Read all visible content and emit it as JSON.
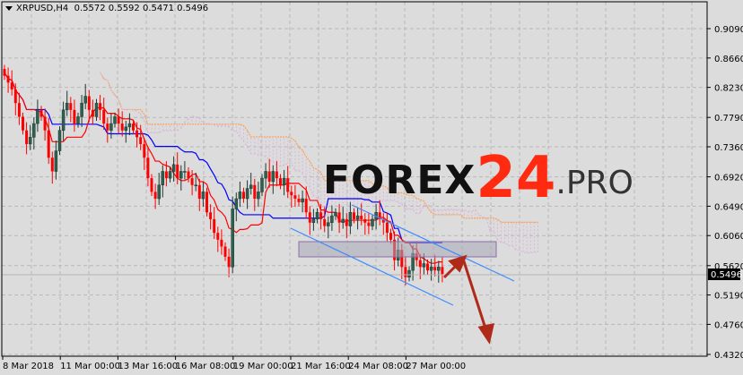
{
  "header": {
    "symbol": "XRPUSD,H4",
    "ohlc": "0.5572 0.5592 0.5471 0.5496"
  },
  "watermark": {
    "brand": "FOREX",
    "number": "24",
    "suffix": ".PRO"
  },
  "colors": {
    "background": "#dcdcdc",
    "bull": "#2f5f4f",
    "bear": "#ff0000",
    "tenkan": "#ff0000",
    "kijun": "#0000ff",
    "span_b": "#ffa050",
    "cloud": "#d9b8d9",
    "channel": "#3d8cff",
    "arrow": "#b02a1a",
    "zone": "#a8a8b8"
  },
  "chart_data": {
    "type": "candlestick",
    "title": "XRPUSD,H4",
    "indicators": [
      "ichimoku"
    ],
    "grid": true,
    "ylim": [
      0.432,
      0.909
    ],
    "y_ticks": [
      "0.9090",
      "0.8660",
      "0.8230",
      "0.7790",
      "0.7360",
      "0.6920",
      "0.6490",
      "0.6060",
      "0.5620",
      "0.5190",
      "0.4760",
      "0.4320"
    ],
    "x_ticks": [
      "8 Mar 2018",
      "11 Mar 00:00",
      "13 Mar 16:00",
      "16 Mar 08:00",
      "19 Mar 00:00",
      "21 Mar 16:00",
      "24 Mar 08:00",
      "27 Mar 00:00"
    ],
    "current_price": "0.5496",
    "close": [
      0.84,
      0.83,
      0.82,
      0.8,
      0.78,
      0.76,
      0.74,
      0.75,
      0.77,
      0.79,
      0.78,
      0.76,
      0.72,
      0.7,
      0.73,
      0.76,
      0.79,
      0.8,
      0.79,
      0.77,
      0.78,
      0.8,
      0.81,
      0.79,
      0.78,
      0.8,
      0.79,
      0.77,
      0.76,
      0.77,
      0.78,
      0.77,
      0.76,
      0.765,
      0.77,
      0.76,
      0.75,
      0.74,
      0.72,
      0.69,
      0.67,
      0.66,
      0.68,
      0.7,
      0.69,
      0.7,
      0.71,
      0.69,
      0.7,
      0.7,
      0.69,
      0.68,
      0.68,
      0.66,
      0.67,
      0.64,
      0.63,
      0.61,
      0.6,
      0.59,
      0.575,
      0.56,
      0.645,
      0.66,
      0.67,
      0.66,
      0.675,
      0.68,
      0.66,
      0.67,
      0.69,
      0.7,
      0.685,
      0.7,
      0.69,
      0.68,
      0.69,
      0.67,
      0.665,
      0.66,
      0.655,
      0.66,
      0.64,
      0.625,
      0.63,
      0.64,
      0.63,
      0.62,
      0.625,
      0.635,
      0.64,
      0.625,
      0.63,
      0.62,
      0.64,
      0.63,
      0.635,
      0.63,
      0.625,
      0.62,
      0.63,
      0.64,
      0.63,
      0.625,
      0.61,
      0.6,
      0.57,
      0.585,
      0.56,
      0.545,
      0.555,
      0.58,
      0.57,
      0.56,
      0.565,
      0.555,
      0.56,
      0.555,
      0.56,
      0.5496
    ]
  }
}
